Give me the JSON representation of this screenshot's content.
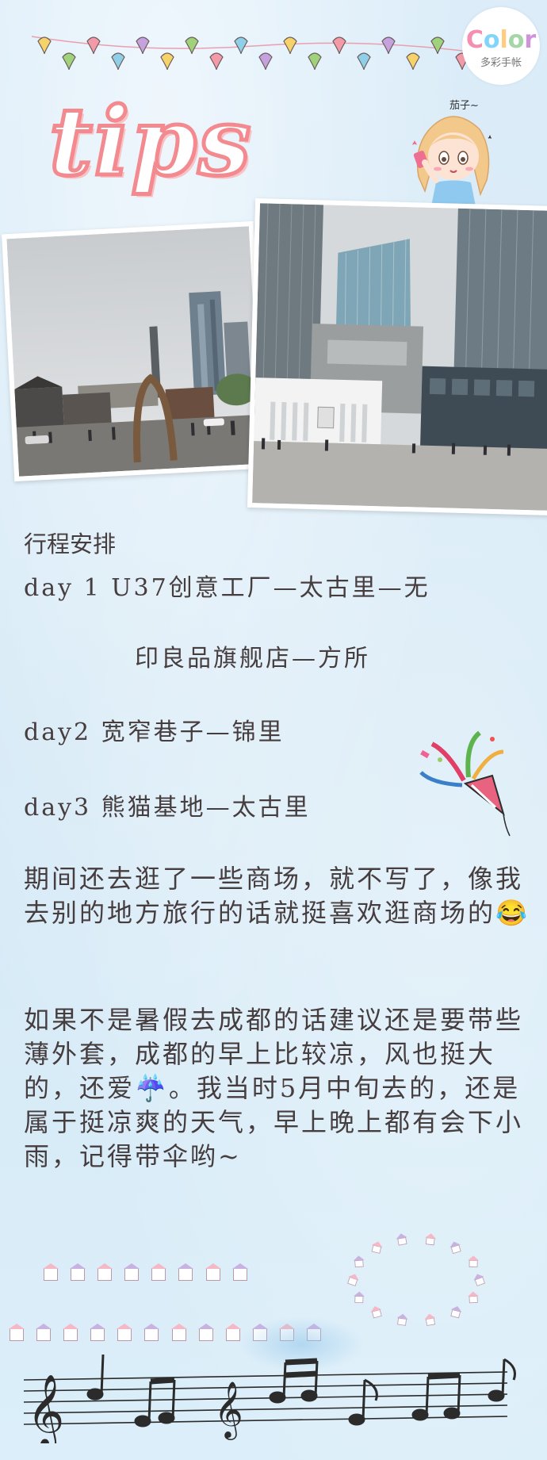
{
  "logo": {
    "word_letters": [
      "C",
      "o",
      "l",
      "o",
      "r"
    ],
    "sub": "多彩手帐",
    "icon": "color-logo-icon"
  },
  "title": "tips",
  "sticker": {
    "tag": "茄子~",
    "icon": "girl-selfie-sticker-icon"
  },
  "photos": [
    {
      "icon": "street-photo-icon"
    },
    {
      "icon": "buildings-photo-icon"
    }
  ],
  "itinerary": {
    "heading": "行程安排",
    "day1_a": "day 1   U37创意工厂—太古里—无",
    "day1_b": "印良品旗舰店—方所",
    "day2": "day2  宽窄巷子—锦里",
    "day3": "day3   熊猫基地—太古里"
  },
  "notes": {
    "para1": "  期间还去逛了一些商场，就不写了，像我去别的地方旅行的话就挺喜欢逛商场的😂",
    "para2": "如果不是暑假去成都的话建议还是要带些薄外套，成都的早上比较凉，风也挺大的，还爱☔。我当时5月中旬去的，还是属于挺凉爽的天气，早上晚上都有会下小雨，记得带伞哟~"
  },
  "decor": {
    "bunting_icon": "bunting-icon",
    "popper_icon": "party-popper-icon",
    "houses_icon": "house-icon",
    "music_icon": "music-notes-icon"
  },
  "colors": {
    "background": "#d9ecf8",
    "title_stroke": "#f28a8f",
    "text": "#463d3f"
  }
}
